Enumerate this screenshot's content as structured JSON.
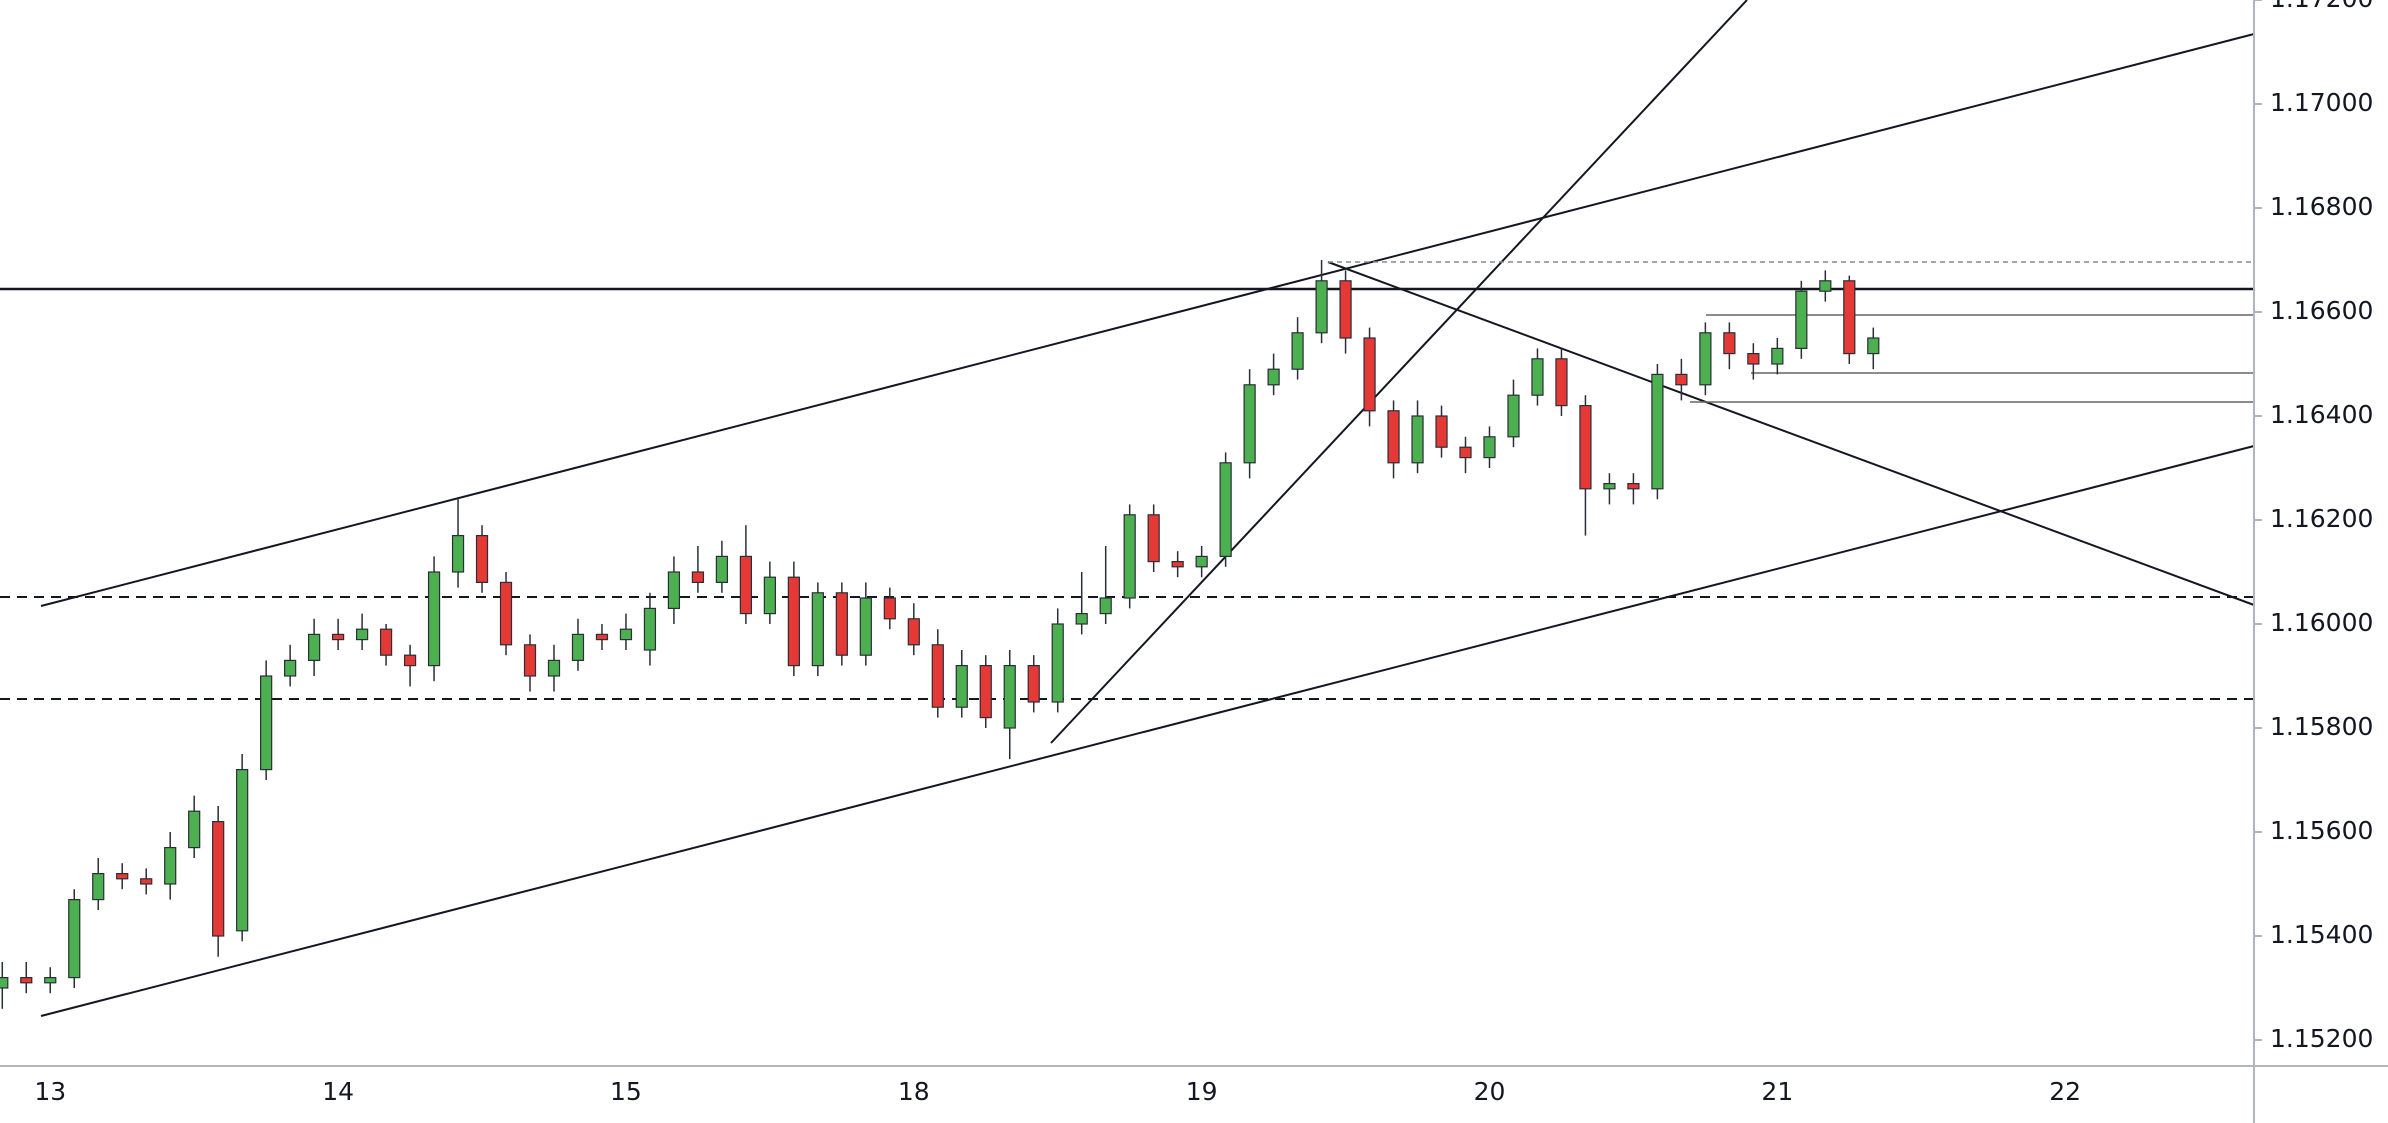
{
  "chart_data": {
    "type": "candlestick",
    "categories": [
      null,
      null,
      "13",
      null,
      null,
      null,
      null,
      null,
      null,
      null,
      null,
      null,
      null,
      null,
      "14",
      null,
      null,
      null,
      null,
      null,
      null,
      null,
      null,
      null,
      null,
      null,
      "15",
      null,
      null,
      null,
      null,
      null,
      null,
      null,
      null,
      null,
      null,
      null,
      "18",
      null,
      null,
      null,
      null,
      null,
      null,
      null,
      null,
      null,
      null,
      null,
      "19",
      null,
      null,
      null,
      null,
      null,
      null,
      null,
      null,
      null,
      null,
      null,
      "20",
      null,
      null,
      null,
      null,
      null,
      null,
      null,
      null,
      null,
      null,
      null,
      "21",
      null,
      null,
      null,
      null,
      null,
      null,
      null,
      null,
      null,
      null,
      null,
      "22",
      null,
      null,
      null,
      null,
      null,
      null,
      null
    ],
    "open": [
      1.153,
      1.1532,
      1.1531,
      1.1532,
      1.1547,
      1.1552,
      1.1551,
      1.155,
      1.1557,
      1.1562,
      1.1541,
      1.1572,
      1.159,
      1.1593,
      1.1598,
      1.1597,
      1.1599,
      1.1594,
      1.1592,
      1.161,
      1.1617,
      1.1608,
      1.1596,
      1.159,
      1.1593,
      1.1598,
      1.1597,
      1.1595,
      1.1603,
      1.161,
      1.1608,
      1.1613,
      1.1602,
      1.1609,
      1.1592,
      1.1606,
      1.1594,
      1.1605,
      1.1601,
      1.1596,
      1.1584,
      1.1592,
      1.158,
      1.1592,
      1.1585,
      1.16,
      1.1602,
      1.1605,
      1.1621,
      1.1612,
      1.1611,
      1.1613,
      1.1631,
      1.1646,
      1.1649,
      1.1656,
      1.1666,
      1.1655,
      1.1641,
      1.1631,
      1.164,
      1.1634,
      1.1632,
      1.1636,
      1.1644,
      1.1651,
      1.1642,
      1.1626,
      1.1627,
      1.1626,
      1.1648,
      1.1646,
      1.1656,
      1.1652,
      1.165,
      1.1653,
      1.1664,
      1.1666,
      1.1652,
      null,
      null,
      null,
      null,
      null,
      null,
      null,
      null,
      null,
      null,
      null,
      null,
      null,
      null,
      null
    ],
    "high": [
      1.1535,
      1.1535,
      1.1534,
      1.1549,
      1.1555,
      1.1554,
      1.1553,
      1.156,
      1.1567,
      1.1565,
      1.1575,
      1.1593,
      1.1596,
      1.1601,
      1.1601,
      1.1602,
      1.16,
      1.1596,
      1.1613,
      1.1624,
      1.1619,
      1.161,
      1.1598,
      1.1596,
      1.1601,
      1.16,
      1.1602,
      1.1606,
      1.1613,
      1.1615,
      1.1616,
      1.1619,
      1.1612,
      1.1612,
      1.1608,
      1.1608,
      1.1608,
      1.1607,
      1.1604,
      1.1599,
      1.1595,
      1.1594,
      1.1595,
      1.1594,
      1.1603,
      1.161,
      1.1615,
      1.1623,
      1.1623,
      1.1614,
      1.1615,
      1.1633,
      1.1649,
      1.1652,
      1.1659,
      1.167,
      1.1668,
      1.1657,
      1.1643,
      1.1643,
      1.1642,
      1.1636,
      1.1638,
      1.1647,
      1.1653,
      1.1653,
      1.1644,
      1.1629,
      1.1629,
      1.165,
      1.1651,
      1.1658,
      1.1658,
      1.1654,
      1.1655,
      1.1666,
      1.1668,
      1.1667,
      1.1657,
      null,
      null,
      null,
      null,
      null,
      null,
      null,
      null,
      null,
      null,
      null,
      null,
      null,
      null,
      null
    ],
    "low": [
      1.1526,
      1.1529,
      1.1529,
      1.153,
      1.1545,
      1.1549,
      1.1548,
      1.1547,
      1.1555,
      1.1536,
      1.1539,
      1.157,
      1.1588,
      1.159,
      1.1595,
      1.1595,
      1.1592,
      1.1588,
      1.1589,
      1.1607,
      1.1606,
      1.1594,
      1.1587,
      1.1587,
      1.1591,
      1.1595,
      1.1595,
      1.1592,
      1.16,
      1.1606,
      1.1606,
      1.16,
      1.16,
      1.159,
      1.159,
      1.1592,
      1.1592,
      1.1599,
      1.1594,
      1.1582,
      1.1582,
      1.158,
      1.1574,
      1.1583,
      1.1583,
      1.1598,
      1.16,
      1.1603,
      1.161,
      1.1609,
      1.1609,
      1.1611,
      1.1628,
      1.1644,
      1.1647,
      1.1654,
      1.1652,
      1.1638,
      1.1628,
      1.1629,
      1.1632,
      1.1629,
      1.163,
      1.1634,
      1.1642,
      1.164,
      1.1617,
      1.1623,
      1.1623,
      1.1624,
      1.1643,
      1.1644,
      1.1649,
      1.1647,
      1.1648,
      1.1651,
      1.1662,
      1.165,
      1.1649,
      null,
      null,
      null,
      null,
      null,
      null,
      null,
      null,
      null,
      null,
      null,
      null,
      null,
      null,
      null
    ],
    "close": [
      1.1532,
      1.1531,
      1.1532,
      1.1547,
      1.1552,
      1.1551,
      1.155,
      1.1557,
      1.1564,
      1.154,
      1.1572,
      1.159,
      1.1593,
      1.1598,
      1.1597,
      1.1599,
      1.1594,
      1.1592,
      1.161,
      1.1617,
      1.1608,
      1.1596,
      1.159,
      1.1593,
      1.1598,
      1.1597,
      1.1599,
      1.1603,
      1.161,
      1.1608,
      1.1613,
      1.1602,
      1.1609,
      1.1592,
      1.1606,
      1.1594,
      1.1605,
      1.1601,
      1.1596,
      1.1584,
      1.1592,
      1.1582,
      1.1592,
      1.1585,
      1.16,
      1.1602,
      1.1605,
      1.1621,
      1.1612,
      1.1611,
      1.1613,
      1.1631,
      1.1646,
      1.1649,
      1.1656,
      1.1666,
      1.1655,
      1.1641,
      1.1631,
      1.164,
      1.1634,
      1.1632,
      1.1636,
      1.1644,
      1.1651,
      1.1642,
      1.1626,
      1.1627,
      1.1626,
      1.1648,
      1.1646,
      1.1656,
      1.1652,
      1.165,
      1.1653,
      1.1664,
      1.1666,
      1.1652,
      1.1655,
      null,
      null,
      null,
      null,
      null,
      null,
      null,
      null,
      null,
      null,
      null,
      null,
      null,
      null,
      null
    ],
    "up_color": "#4caf50",
    "down_color": "#e53935",
    "ylim": [
      1.1515,
      1.172
    ],
    "yticks": [
      {
        "value": 1.152,
        "label": "1.15200"
      },
      {
        "value": 1.154,
        "label": "1.15400"
      },
      {
        "value": 1.156,
        "label": "1.15600"
      },
      {
        "value": 1.158,
        "label": "1.15800"
      },
      {
        "value": 1.16,
        "label": "1.16000"
      },
      {
        "value": 1.162,
        "label": "1.16200"
      },
      {
        "value": 1.164,
        "label": "1.16400"
      },
      {
        "value": 1.166,
        "label": "1.16600"
      },
      {
        "value": 1.168,
        "label": "1.16800"
      },
      {
        "value": 1.17,
        "label": "1.17000"
      },
      {
        "value": 1.172,
        "label": "1.17200"
      }
    ],
    "grid": false
  }
}
